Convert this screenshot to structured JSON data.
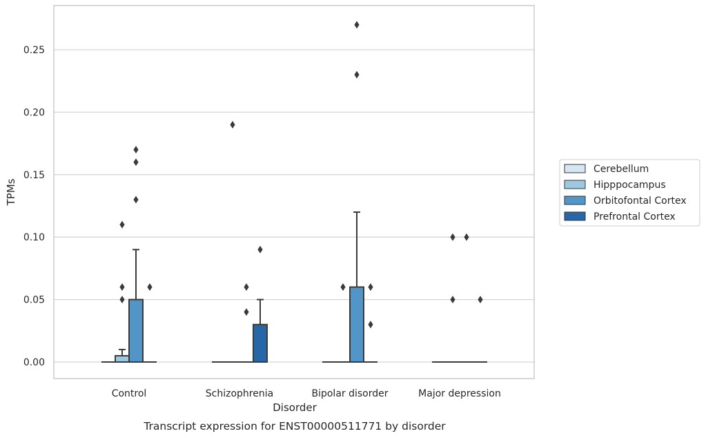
{
  "chart_data": {
    "type": "box",
    "title": "",
    "caption": "Transcript expression for ENST00000511771 by disorder",
    "xlabel": "Disorder",
    "ylabel": "TPMs",
    "ylim": [
      -0.013,
      0.284
    ],
    "yticks": [
      "0.00",
      "0.05",
      "0.10",
      "0.15",
      "0.20",
      "0.25"
    ],
    "ytick_values": [
      0,
      0.05,
      0.1,
      0.15,
      0.2,
      0.25
    ],
    "grid": "horizontal",
    "legend_position": "right",
    "categories": [
      "Control",
      "Schizophrenia",
      "Bipolar disorder",
      "Major depression"
    ],
    "series": [
      {
        "name": "Cerebellum",
        "color": "#d6e6f4",
        "boxes": [
          {
            "q1": 0,
            "median": 0,
            "q3": 0,
            "whisker_low": 0,
            "whisker_high": 0,
            "outliers": []
          },
          {
            "q1": 0,
            "median": 0,
            "q3": 0,
            "whisker_low": 0,
            "whisker_high": 0,
            "outliers": []
          },
          {
            "q1": 0,
            "median": 0,
            "q3": 0,
            "whisker_low": 0,
            "whisker_high": 0,
            "outliers": []
          },
          {
            "q1": 0,
            "median": 0,
            "q3": 0,
            "whisker_low": 0,
            "whisker_high": 0,
            "outliers": []
          }
        ]
      },
      {
        "name": "Hipppocampus",
        "color": "#9cc9e1",
        "boxes": [
          {
            "q1": 0,
            "median": 0,
            "q3": 0.005,
            "whisker_low": 0,
            "whisker_high": 0.01,
            "outliers": [
              0.05,
              0.06,
              0.11
            ]
          },
          {
            "q1": 0,
            "median": 0,
            "q3": 0,
            "whisker_low": 0,
            "whisker_high": 0,
            "outliers": [
              0.19
            ]
          },
          {
            "q1": 0,
            "median": 0,
            "q3": 0,
            "whisker_low": 0,
            "whisker_high": 0,
            "outliers": [
              0.06
            ]
          },
          {
            "q1": 0,
            "median": 0,
            "q3": 0,
            "whisker_low": 0,
            "whisker_high": 0,
            "outliers": [
              0.05,
              0.1
            ]
          }
        ]
      },
      {
        "name": "Orbitofontal Cortex",
        "color": "#5296c7",
        "boxes": [
          {
            "q1": 0,
            "median": 0,
            "q3": 0.05,
            "whisker_low": 0,
            "whisker_high": 0.09,
            "outliers": [
              0.13,
              0.16,
              0.17
            ]
          },
          {
            "q1": 0,
            "median": 0,
            "q3": 0,
            "whisker_low": 0,
            "whisker_high": 0,
            "outliers": [
              0.04,
              0.06
            ]
          },
          {
            "q1": 0,
            "median": 0,
            "q3": 0.06,
            "whisker_low": 0,
            "whisker_high": 0.12,
            "outliers": [
              0.23,
              0.27
            ]
          },
          {
            "q1": 0,
            "median": 0,
            "q3": 0,
            "whisker_low": 0,
            "whisker_high": 0,
            "outliers": [
              0.1
            ]
          }
        ]
      },
      {
        "name": "Prefrontal Cortex",
        "color": "#2767a8",
        "boxes": [
          {
            "q1": 0,
            "median": 0,
            "q3": 0,
            "whisker_low": 0,
            "whisker_high": 0,
            "outliers": [
              0.06
            ]
          },
          {
            "q1": 0,
            "median": 0,
            "q3": 0.03,
            "whisker_low": 0,
            "whisker_high": 0.05,
            "outliers": [
              0.09
            ]
          },
          {
            "q1": 0,
            "median": 0,
            "q3": 0,
            "whisker_low": 0,
            "whisker_high": 0,
            "outliers": [
              0.03,
              0.06
            ]
          },
          {
            "q1": 0,
            "median": 0,
            "q3": 0,
            "whisker_low": 0,
            "whisker_high": 0,
            "outliers": [
              0.05
            ]
          }
        ]
      }
    ],
    "colors": {
      "grid": "#d5d5d5",
      "frame": "#cccccc",
      "line": "#3a3a3a",
      "outlier": "#3a3a3a"
    }
  }
}
